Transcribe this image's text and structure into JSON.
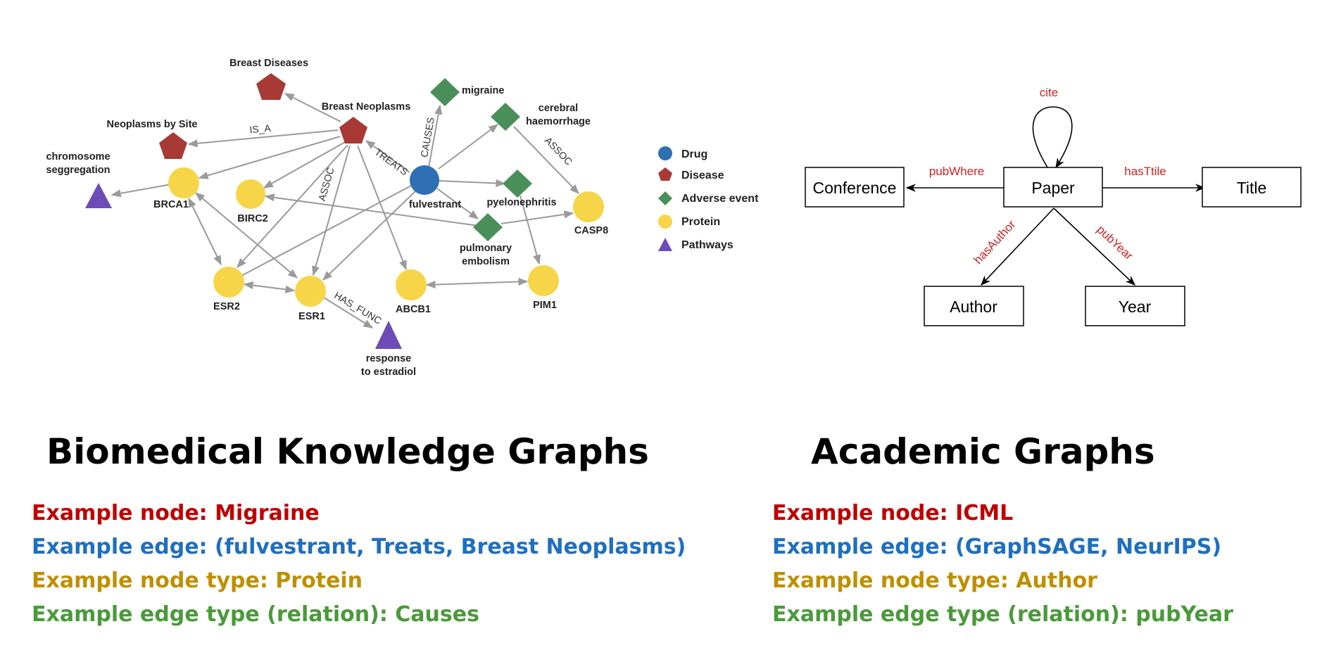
{
  "colors": {
    "drug": "#2f6fb3",
    "disease": "#a83a36",
    "adverse_event": "#4a8f5a",
    "protein": "#f7d548",
    "pathway": "#6d4cb8",
    "edge": "#9a9a9a",
    "relation_red": "#d42020",
    "example_node": "#c00000",
    "example_edge": "#1f6fbf",
    "example_node_type": "#bf8f00",
    "example_edge_type": "#4a9a3a"
  },
  "biomedical": {
    "heading": "Biomedical Knowledge Graphs",
    "nodes": {
      "breast_diseases": "Breast Diseases",
      "breast_neoplasms": "Breast Neoplasms",
      "neoplasms_by_site": "Neoplasms by Site",
      "chromosome_line1": "chromosome",
      "chromosome_line2": "seggregation",
      "brca1": "BRCA1",
      "birc2": "BIRC2",
      "fulvestrant": "fulvestrant",
      "migraine": "migraine",
      "cerebral_line1": "cerebral",
      "cerebral_line2": "haemorrhage",
      "pyelonephritis": "pyelonephritis",
      "casp8": "CASP8",
      "pulmonary_line1": "pulmonary",
      "pulmonary_line2": "embolism",
      "esr2": "ESR2",
      "esr1": "ESR1",
      "abcb1": "ABCB1",
      "pim1": "PIM1",
      "response_line1": "response",
      "response_line2": "to estradiol"
    },
    "edge_labels": {
      "is_a": "IS_A",
      "treats": "TREATS",
      "causes": "CAUSES",
      "assoc_left": "ASSOC",
      "assoc_right": "ASSOC",
      "has_func": "HAS_FUNC"
    },
    "legend": {
      "drug": "Drug",
      "disease": "Disease",
      "adverse_event": "Adverse event",
      "protein": "Protein",
      "pathways": "Pathways"
    },
    "examples": {
      "node": "Example node: Migraine",
      "edge": "Example edge: (fulvestrant, Treats, Breast Neoplasms)",
      "node_type": "Example node type: Protein",
      "edge_type": "Example edge type (relation): Causes"
    }
  },
  "academic": {
    "heading": "Academic Graphs",
    "nodes": {
      "paper": "Paper",
      "conference": "Conference",
      "title": "Title",
      "author": "Author",
      "year": "Year"
    },
    "edge_labels": {
      "cite": "cite",
      "pub_where": "pubWhere",
      "has_title": "hasTtile",
      "has_author": "hasAuthor",
      "pub_year": "pubYear"
    },
    "examples": {
      "node": "Example node: ICML",
      "edge": "Example edge: (GraphSAGE, NeurIPS)",
      "node_type": "Example node type: Author",
      "edge_type": "Example edge type (relation): pubYear"
    }
  }
}
